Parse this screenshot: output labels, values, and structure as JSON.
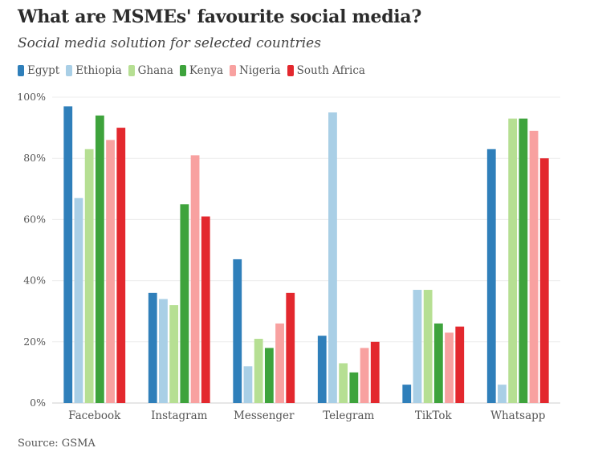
{
  "title": "What are MSMEs' favourite social media?",
  "subtitle": "Social media solution for selected countries",
  "source": "Source: GSMA",
  "chart_data": {
    "type": "bar",
    "categories": [
      "Facebook",
      "Instagram",
      "Messenger",
      "Telegram",
      "TikTok",
      "Whatsapp"
    ],
    "series": [
      {
        "name": "Egypt",
        "color": "#2f7fba",
        "values": [
          97,
          36,
          47,
          22,
          6,
          83
        ]
      },
      {
        "name": "Ethiopia",
        "color": "#a9cfe6",
        "values": [
          67,
          34,
          12,
          95,
          37,
          6
        ]
      },
      {
        "name": "Ghana",
        "color": "#b6df93",
        "values": [
          83,
          32,
          21,
          13,
          37,
          93
        ]
      },
      {
        "name": "Kenya",
        "color": "#3ea33c",
        "values": [
          94,
          65,
          18,
          10,
          26,
          93
        ]
      },
      {
        "name": "Nigeria",
        "color": "#f8a1a0",
        "values": [
          86,
          81,
          26,
          18,
          23,
          89
        ]
      },
      {
        "name": "South Africa",
        "color": "#e3282e",
        "values": [
          90,
          61,
          36,
          20,
          25,
          80
        ]
      }
    ],
    "yticks": [
      "0%",
      "20%",
      "40%",
      "60%",
      "80%",
      "100%"
    ],
    "ylim": [
      0,
      100
    ],
    "grid": true,
    "legend": "top-left"
  }
}
